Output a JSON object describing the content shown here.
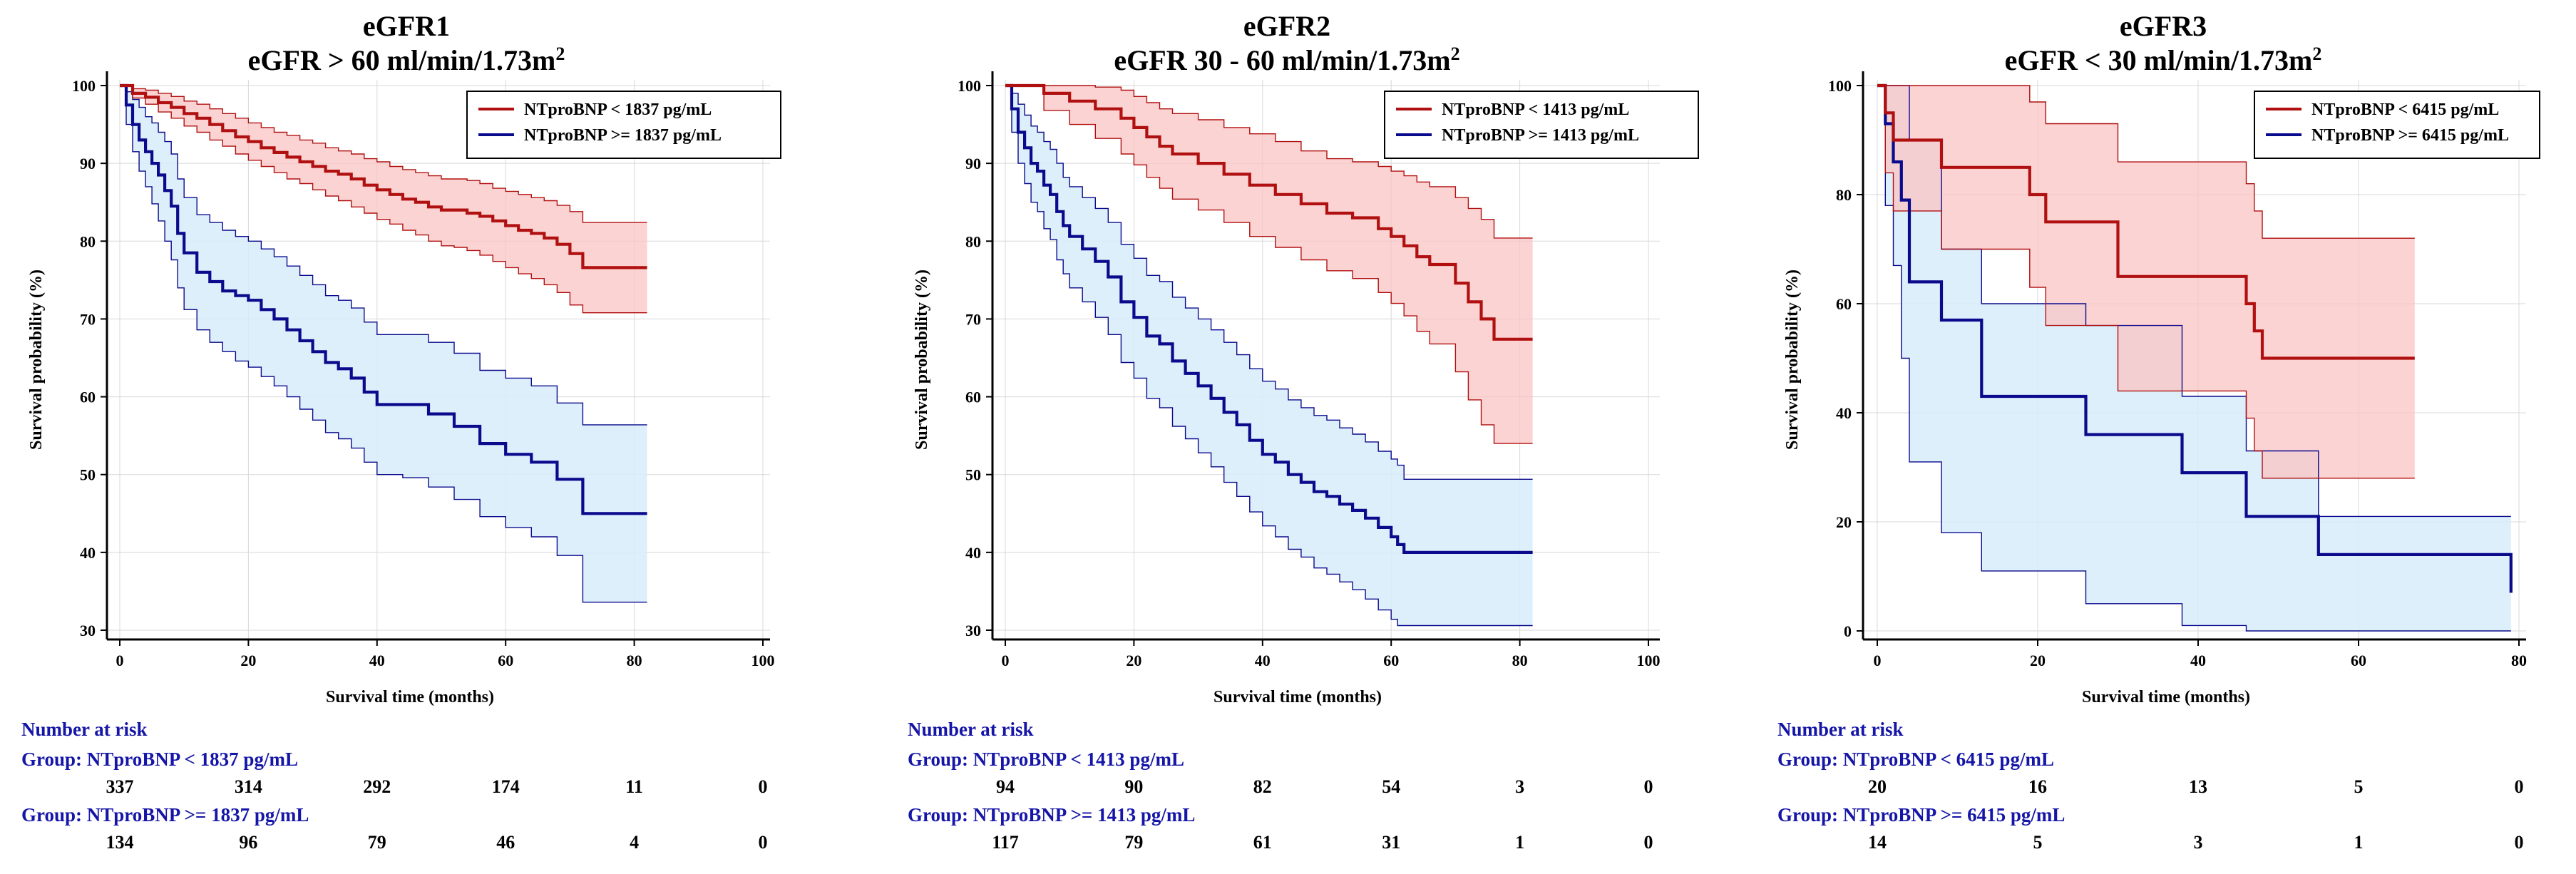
{
  "chart_data": [
    {
      "type": "line",
      "title": "eGFR1",
      "subtitle": "eGFR > 60 ml/min/1.73m²",
      "xlabel": "Survival time (months)",
      "ylabel": "Survival probability (%)",
      "xlim": [
        0,
        100
      ],
      "ylim": [
        30,
        100
      ],
      "xticks": [
        0,
        20,
        40,
        60,
        80,
        100
      ],
      "yticks": [
        30,
        40,
        50,
        60,
        70,
        80,
        90,
        100
      ],
      "grid": true,
      "legend_position": "top-right",
      "series": [
        {
          "name": "NTproBNP < 1837 pg/mL",
          "color": "#b01010",
          "band_color": "#fbc4c4",
          "x": [
            0,
            2,
            4,
            6,
            8,
            10,
            12,
            14,
            16,
            18,
            20,
            22,
            24,
            26,
            28,
            30,
            32,
            34,
            36,
            38,
            40,
            42,
            44,
            46,
            48,
            50,
            52,
            54,
            56,
            58,
            60,
            62,
            64,
            66,
            68,
            70,
            72,
            76,
            82
          ],
          "y": [
            100,
            99,
            98.5,
            97.8,
            97.2,
            96.4,
            95.8,
            95,
            94.2,
            93.4,
            92.8,
            92,
            91.4,
            90.8,
            90.2,
            89.6,
            89,
            88.6,
            88,
            87.2,
            86.6,
            86,
            85.4,
            85,
            84.4,
            84,
            84,
            83.6,
            83.2,
            82.6,
            82,
            81.4,
            81,
            80.4,
            79.6,
            78.4,
            76.6,
            76.6,
            76.6
          ],
          "lower": [
            100,
            98.4,
            97.6,
            96.6,
            95.8,
            94.8,
            94,
            93,
            92.2,
            91.2,
            90.4,
            89.6,
            88.8,
            88,
            87.4,
            86.6,
            85.8,
            85.2,
            84.4,
            83.6,
            82.8,
            82.2,
            81.4,
            80.8,
            80,
            79.4,
            79.2,
            78.8,
            78.2,
            77.4,
            76.6,
            75.8,
            75.2,
            74.4,
            73.4,
            71.8,
            70.8,
            70.8,
            70.8
          ],
          "upper": [
            100,
            99.6,
            99.4,
            99,
            98.6,
            98,
            97.6,
            97,
            96.4,
            95.8,
            95.2,
            94.6,
            94,
            93.6,
            93,
            92.6,
            92,
            91.6,
            91.2,
            90.6,
            90.2,
            89.6,
            89.2,
            88.8,
            88.4,
            88,
            88,
            87.8,
            87.4,
            86.8,
            86.4,
            86,
            85.6,
            85.2,
            84.6,
            83.8,
            82.4,
            82.4,
            82.4
          ]
        },
        {
          "name": "NTproBNP >= 1837 pg/mL",
          "color": "#0a0a8c",
          "band_color": "#d8ecfb",
          "x": [
            0,
            1,
            2,
            3,
            4,
            5,
            6,
            7,
            8,
            9,
            10,
            12,
            14,
            16,
            18,
            20,
            22,
            24,
            26,
            28,
            30,
            32,
            34,
            36,
            38,
            40,
            44,
            48,
            52,
            56,
            60,
            64,
            68,
            70,
            72,
            76,
            82
          ],
          "y": [
            100,
            97.5,
            95,
            93,
            91.5,
            90,
            88.5,
            86.5,
            84.5,
            81,
            78.5,
            76,
            74.8,
            73.6,
            73,
            72.4,
            71.2,
            70,
            68.6,
            67.2,
            65.8,
            64.4,
            63.6,
            62.4,
            60.6,
            59,
            59,
            57.8,
            56.2,
            54,
            52.6,
            51.6,
            49.4,
            49.4,
            45,
            45,
            45
          ],
          "lower": [
            100,
            95,
            91.5,
            89,
            87,
            84.8,
            82.6,
            80,
            77.6,
            74,
            71.2,
            68.6,
            67,
            65.8,
            64.6,
            63.8,
            62.6,
            61.4,
            60,
            58.4,
            57,
            55.4,
            54.6,
            53.4,
            51.6,
            50,
            49.6,
            48.4,
            46.8,
            44.6,
            43.2,
            42,
            39.6,
            39.6,
            33.6,
            33.6,
            33.6
          ],
          "upper": [
            100,
            99.2,
            98.2,
            97.2,
            96,
            95.2,
            94,
            92.8,
            91.2,
            88,
            85.6,
            83.4,
            82.4,
            81.4,
            80.6,
            80,
            79,
            78,
            76.8,
            75.6,
            74.4,
            73,
            72.4,
            71.4,
            69.6,
            68,
            68,
            67,
            65.6,
            63.4,
            62.4,
            61.4,
            59.2,
            59.2,
            56.4,
            56.4,
            56.4
          ]
        }
      ],
      "risk_table": {
        "heading": "Number at risk",
        "groups": [
          {
            "label": "Group: NTproBNP < 1837 pg/mL",
            "values": [
              "337",
              "314",
              "292",
              "174",
              "11",
              "0"
            ]
          },
          {
            "label": "Group: NTproBNP >= 1837 pg/mL",
            "values": [
              "134",
              "96",
              "79",
              "46",
              "4",
              "0"
            ]
          }
        ]
      }
    },
    {
      "type": "line",
      "title": "eGFR2",
      "subtitle": "eGFR 30 - 60 ml/min/1.73m²",
      "xlabel": "Survival time (months)",
      "ylabel": "Survival probability (%)",
      "xlim": [
        0,
        100
      ],
      "ylim": [
        30,
        100
      ],
      "xticks": [
        0,
        20,
        40,
        60,
        80,
        100
      ],
      "yticks": [
        30,
        40,
        50,
        60,
        70,
        80,
        90,
        100
      ],
      "grid": true,
      "legend_position": "top-right",
      "series": [
        {
          "name": "NTproBNP < 1413 pg/mL",
          "color": "#b01010",
          "band_color": "#fbc4c4",
          "x": [
            0,
            3,
            6,
            10,
            14,
            18,
            20,
            22,
            24,
            26,
            30,
            34,
            38,
            42,
            46,
            50,
            54,
            58,
            60,
            62,
            64,
            66,
            70,
            72,
            74,
            76,
            78,
            82
          ],
          "y": [
            100,
            100,
            99,
            98,
            97,
            95.8,
            94.6,
            93.4,
            92.2,
            91.2,
            90,
            88.6,
            87.2,
            86,
            84.8,
            83.6,
            83,
            81.6,
            80.6,
            79.4,
            78,
            77,
            74.6,
            72.2,
            70,
            67.4,
            67.4,
            67.4
          ],
          "lower": [
            100,
            100,
            96.8,
            95,
            93.2,
            91.2,
            89.8,
            88.2,
            86.8,
            85.4,
            84,
            82.4,
            80.6,
            79.2,
            77.6,
            76.2,
            75.2,
            73.4,
            72,
            70.4,
            68.4,
            66.8,
            63.2,
            59.6,
            56.4,
            54,
            54,
            54
          ],
          "upper": [
            100,
            100,
            100,
            100,
            99.8,
            99.4,
            98.6,
            97.8,
            97,
            96.4,
            95.6,
            94.6,
            93.8,
            92.8,
            91.6,
            90.6,
            90.2,
            89.6,
            89,
            88.4,
            87.6,
            87,
            85.6,
            84.2,
            82.8,
            80.4,
            80.4,
            80.4
          ]
        },
        {
          "name": "NTproBNP >= 1413 pg/mL",
          "color": "#0a0a8c",
          "band_color": "#d8ecfb",
          "x": [
            0,
            1,
            2,
            3,
            4,
            5,
            6,
            7,
            8,
            9,
            10,
            12,
            14,
            16,
            18,
            20,
            22,
            24,
            26,
            28,
            30,
            32,
            34,
            36,
            38,
            40,
            42,
            44,
            46,
            48,
            50,
            52,
            54,
            56,
            58,
            60,
            61,
            62,
            64,
            70,
            76,
            82
          ],
          "y": [
            100,
            97,
            94,
            92,
            90,
            89,
            87.2,
            86,
            83.8,
            82,
            80.6,
            79,
            77.4,
            75.4,
            72.2,
            70.2,
            67.8,
            66.8,
            64.6,
            63,
            61.4,
            59.8,
            58,
            56.4,
            54.4,
            52.6,
            51.6,
            50,
            49,
            47.8,
            47.2,
            46.2,
            45.4,
            44.4,
            43.2,
            42,
            41,
            40,
            40,
            40,
            40,
            40
          ],
          "lower": [
            100,
            94,
            90,
            87.4,
            85,
            83.8,
            81.6,
            80.2,
            77.6,
            75.8,
            74,
            72.2,
            70.2,
            68,
            64.4,
            62.4,
            59.8,
            58.6,
            56.2,
            54.6,
            52.8,
            51,
            49,
            47.2,
            45.2,
            43.4,
            42,
            40.4,
            39.4,
            38,
            37.2,
            36.2,
            35.2,
            34,
            32.6,
            31.4,
            30.6,
            30.6,
            30.6,
            30.6,
            30.6,
            30.6
          ],
          "upper": [
            100,
            99,
            97.6,
            96.2,
            94.8,
            94,
            92.8,
            91.8,
            90,
            88.2,
            87,
            85.6,
            84.2,
            82.4,
            79.6,
            77.8,
            75.6,
            74.8,
            72.8,
            71.4,
            70,
            68.6,
            67,
            65.4,
            63.6,
            62,
            61,
            59.6,
            58.6,
            57.6,
            57,
            56,
            55.2,
            54.2,
            53,
            52,
            51.2,
            49.4,
            49.4,
            49.4,
            49.4,
            49.4
          ]
        }
      ],
      "risk_table": {
        "heading": "Number at risk",
        "groups": [
          {
            "label": "Group: NTproBNP < 1413 pg/mL",
            "values": [
              "94",
              "90",
              "82",
              "54",
              "3",
              "0"
            ]
          },
          {
            "label": "Group: NTproBNP >= 1413 pg/mL",
            "values": [
              "117",
              "79",
              "61",
              "31",
              "1",
              "0"
            ]
          }
        ]
      }
    },
    {
      "type": "line",
      "title": "eGFR3",
      "subtitle": "eGFR < 30 ml/min/1.73m²",
      "xlabel": "Survival time (months)",
      "ylabel": "Survival probability (%)",
      "xlim": [
        0,
        80
      ],
      "ylim": [
        0,
        100
      ],
      "xticks": [
        0,
        20,
        40,
        60,
        80
      ],
      "yticks": [
        0,
        20,
        40,
        60,
        80,
        100
      ],
      "grid": true,
      "legend_position": "top-right",
      "series": [
        {
          "name": "NTproBNP < 6415 pg/mL",
          "color": "#b01010",
          "band_color": "#fbc4c4",
          "x": [
            0,
            1,
            2,
            8,
            19,
            21,
            30,
            46,
            47,
            48,
            67
          ],
          "y": [
            100,
            95,
            90,
            85,
            80,
            75,
            65,
            60,
            55,
            50,
            50
          ],
          "lower": [
            100,
            84,
            77,
            70,
            63,
            56,
            44,
            39,
            33,
            28,
            28
          ],
          "upper": [
            100,
            100,
            100,
            100,
            97,
            93,
            86,
            82,
            77,
            72,
            72
          ],
          "steps_x": [
            0,
            1,
            2,
            8,
            19,
            21,
            30,
            46,
            47,
            48,
            67
          ]
        },
        {
          "name": "NTproBNP >= 6415 pg/mL",
          "color": "#0a0a8c",
          "band_color": "#d8ecfb",
          "x": [
            0,
            1,
            2,
            3,
            4,
            8,
            13,
            26,
            38,
            46,
            55,
            79
          ],
          "y": [
            100,
            93,
            86,
            79,
            64,
            57,
            43,
            36,
            29,
            21,
            14,
            7
          ],
          "lower": [
            100,
            78,
            67,
            50,
            31,
            18,
            11,
            5,
            1,
            0,
            0,
            0
          ],
          "upper": [
            100,
            100,
            100,
            100,
            90,
            70,
            60,
            56,
            43,
            33,
            21,
            21
          ],
          "steps_x": [
            0,
            1,
            2,
            3,
            4,
            8,
            13,
            26,
            38,
            46,
            55,
            79
          ]
        }
      ],
      "risk_table": {
        "heading": "Number at risk",
        "groups": [
          {
            "label": "Group: NTproBNP < 6415 pg/mL",
            "values": [
              "20",
              "16",
              "13",
              "5",
              "0"
            ]
          },
          {
            "label": "Group: NTproBNP >= 6415 pg/mL",
            "values": [
              "14",
              "5",
              "3",
              "1",
              "0"
            ]
          }
        ]
      }
    }
  ]
}
